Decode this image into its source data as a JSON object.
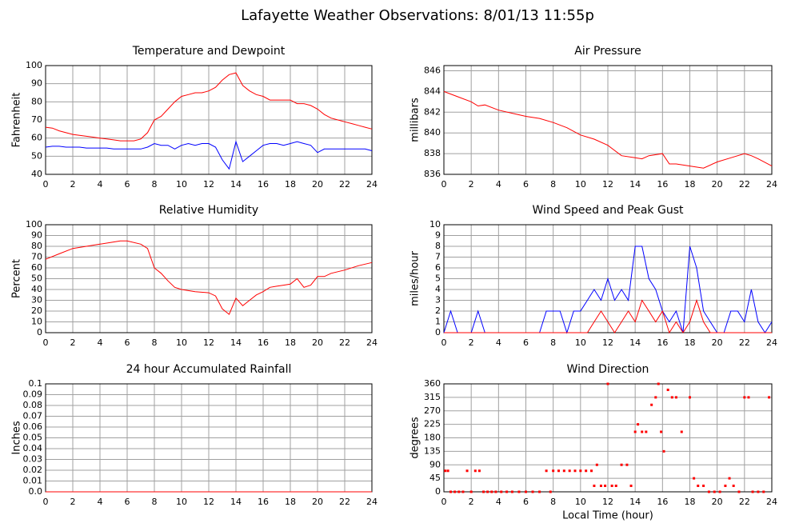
{
  "title": "Lafayette Weather Observations: 8/01/13 11:55p",
  "chart_data": [
    {
      "type": "line",
      "title": "Temperature and Dewpoint",
      "y_label": "Fahrenheit",
      "x": [
        0,
        0.5,
        1,
        1.5,
        2,
        2.5,
        3,
        3.5,
        4,
        4.5,
        5,
        5.5,
        6,
        6.5,
        7,
        7.5,
        8,
        8.5,
        9,
        9.5,
        10,
        10.5,
        11,
        11.5,
        12,
        12.5,
        13,
        13.5,
        14,
        14.5,
        15,
        15.5,
        16,
        16.5,
        17,
        17.5,
        18,
        18.5,
        19,
        19.5,
        20,
        20.5,
        21,
        21.5,
        22,
        22.5,
        23,
        23.5,
        24
      ],
      "series": [
        {
          "name": "Temperature",
          "color": "#ff0000",
          "values": [
            66,
            65.5,
            64,
            63,
            62,
            61.5,
            61,
            60.5,
            60,
            59.5,
            59,
            58.5,
            58.5,
            58.5,
            59.5,
            63,
            70,
            72,
            76,
            80,
            83,
            84,
            85,
            85,
            86,
            88,
            92,
            95,
            96,
            89,
            86,
            84,
            83,
            81,
            81,
            81,
            81,
            79,
            79,
            78,
            76,
            73,
            71,
            70,
            69,
            68,
            67,
            66,
            65
          ]
        },
        {
          "name": "Dewpoint",
          "color": "#0000ff",
          "values": [
            55,
            55.5,
            55.5,
            55,
            55,
            55,
            54.5,
            54.5,
            54.5,
            54.5,
            54,
            54,
            54,
            54,
            54,
            55,
            57,
            56,
            56,
            54,
            56,
            57,
            56,
            57,
            57,
            55,
            48,
            43,
            58,
            47,
            50,
            53,
            56,
            57,
            57,
            56,
            57,
            58,
            57,
            56,
            52,
            54,
            54,
            54,
            54,
            54,
            54,
            54,
            53
          ]
        }
      ],
      "xlim": [
        0,
        24
      ],
      "xticks": [
        0,
        2,
        4,
        6,
        8,
        10,
        12,
        14,
        16,
        18,
        20,
        22,
        24
      ],
      "ylim": [
        40,
        100
      ],
      "yticks": [
        40,
        50,
        60,
        70,
        80,
        90,
        100
      ],
      "grid": true
    },
    {
      "type": "line",
      "title": "Air Pressure",
      "y_label": "millibars",
      "x": [
        0,
        1,
        2,
        2.5,
        3,
        4,
        5,
        6,
        7,
        8,
        9,
        10,
        11,
        12,
        13,
        14,
        14.5,
        15,
        16,
        16.5,
        17,
        18,
        19,
        20,
        21,
        22,
        22.5,
        23,
        24
      ],
      "series": [
        {
          "name": "Pressure",
          "color": "#ff0000",
          "values": [
            844,
            843.5,
            843,
            842.6,
            842.7,
            842.2,
            841.9,
            841.6,
            841.4,
            841,
            840.5,
            839.8,
            839.4,
            838.8,
            837.8,
            837.6,
            837.5,
            837.8,
            838,
            837,
            837,
            836.8,
            836.6,
            837.2,
            837.6,
            838,
            837.8,
            837.5,
            836.8
          ]
        }
      ],
      "xlim": [
        0,
        24
      ],
      "xticks": [
        0,
        2,
        4,
        6,
        8,
        10,
        12,
        14,
        16,
        18,
        20,
        22,
        24
      ],
      "ylim": [
        836,
        846.5
      ],
      "yticks": [
        836,
        838,
        840,
        842,
        844,
        846
      ],
      "grid": true
    },
    {
      "type": "line",
      "title": "Relative Humidity",
      "y_label": "Percent",
      "x": [
        0,
        1,
        2,
        3,
        4,
        5,
        5.5,
        6,
        7,
        7.5,
        8,
        8.5,
        9,
        9.5,
        10,
        11,
        12,
        12.5,
        13,
        13.5,
        14,
        14.5,
        15,
        15.5,
        16,
        16.5,
        17,
        17.5,
        18,
        18.5,
        19,
        19.5,
        20,
        20.5,
        21,
        22,
        23,
        24
      ],
      "series": [
        {
          "name": "Relative Humidity",
          "color": "#ff0000",
          "values": [
            68,
            73,
            78,
            80,
            82,
            84,
            85,
            85,
            82,
            78,
            60,
            55,
            48,
            42,
            40,
            38,
            37,
            34,
            22,
            17,
            32,
            25,
            30,
            35,
            38,
            42,
            43,
            44,
            45,
            50,
            42,
            44,
            52,
            52,
            55,
            58,
            62,
            65
          ]
        }
      ],
      "xlim": [
        0,
        24
      ],
      "xticks": [
        0,
        2,
        4,
        6,
        8,
        10,
        12,
        14,
        16,
        18,
        20,
        22,
        24
      ],
      "ylim": [
        0,
        100
      ],
      "yticks": [
        0,
        10,
        20,
        30,
        40,
        50,
        60,
        70,
        80,
        90,
        100
      ],
      "grid": true
    },
    {
      "type": "line",
      "title": "Wind Speed and Peak Gust",
      "y_label": "miles/hour",
      "x": [
        0,
        0.5,
        1,
        1.5,
        2,
        2.5,
        3,
        3.5,
        4,
        4.5,
        5,
        5.5,
        6,
        6.5,
        7,
        7.5,
        8,
        8.5,
        9,
        9.5,
        10,
        10.5,
        11,
        11.5,
        12,
        12.5,
        13,
        13.5,
        14,
        14.5,
        15,
        15.5,
        16,
        16.5,
        17,
        17.5,
        18,
        18.5,
        19,
        19.5,
        20,
        20.5,
        21,
        21.5,
        22,
        22.5,
        23,
        23.5,
        24
      ],
      "series": [
        {
          "name": "Peak Gust",
          "color": "#0000ff",
          "values": [
            0,
            2,
            0,
            0,
            0,
            2,
            0,
            0,
            0,
            0,
            0,
            0,
            0,
            0,
            0,
            2,
            2,
            2,
            0,
            2,
            2,
            3,
            4,
            3,
            5,
            3,
            4,
            3,
            8,
            8,
            5,
            4,
            2,
            1,
            2,
            0,
            8,
            6,
            2,
            1,
            0,
            0,
            2,
            2,
            1,
            4,
            1,
            0,
            1
          ]
        },
        {
          "name": "Wind Speed",
          "color": "#ff0000",
          "values": [
            0,
            0,
            0,
            0,
            0,
            0,
            0,
            0,
            0,
            0,
            0,
            0,
            0,
            0,
            0,
            0,
            0,
            0,
            0,
            0,
            0,
            0,
            1,
            2,
            1,
            0,
            1,
            2,
            1,
            3,
            2,
            1,
            2,
            0,
            1,
            0,
            1,
            3,
            1,
            0,
            0,
            0,
            0,
            0,
            0,
            0,
            0,
            0,
            0
          ]
        }
      ],
      "xlim": [
        0,
        24
      ],
      "xticks": [
        0,
        2,
        4,
        6,
        8,
        10,
        12,
        14,
        16,
        18,
        20,
        22,
        24
      ],
      "ylim": [
        0,
        10
      ],
      "yticks": [
        0,
        1,
        2,
        3,
        4,
        5,
        6,
        7,
        8,
        9,
        10
      ],
      "grid": true
    },
    {
      "type": "line",
      "title": "24 hour Accumulated Rainfall",
      "y_label": "Inches",
      "x": [
        0,
        24
      ],
      "series": [
        {
          "name": "Rainfall",
          "color": "#ff0000",
          "values": [
            0,
            0
          ]
        }
      ],
      "xlim": [
        0,
        24
      ],
      "xticks": [
        0,
        2,
        4,
        6,
        8,
        10,
        12,
        14,
        16,
        18,
        20,
        22,
        24
      ],
      "ylim": [
        0,
        0.1
      ],
      "yticks": [
        {
          "value": 0,
          "label": "0.0"
        },
        0.01,
        0.02,
        0.03,
        0.04,
        0.05,
        0.06,
        0.07,
        0.08,
        0.09,
        {
          "value": 0.1,
          "label": "0.1"
        }
      ],
      "grid": true
    },
    {
      "type": "scatter",
      "title": "Wind Direction",
      "y_label": "degrees",
      "x_label": "Local Time (hour)",
      "color": "#ff0000",
      "x": [
        0.1,
        0.3,
        0.5,
        0.8,
        1.1,
        1.4,
        1.7,
        2.0,
        2.3,
        2.6,
        2.9,
        3.2,
        3.5,
        3.8,
        4.2,
        4.6,
        5,
        5.5,
        6,
        6.5,
        7,
        7.5,
        7.8,
        8,
        8.4,
        8.8,
        9.2,
        9.6,
        10,
        10.4,
        10.8,
        11,
        11.2,
        11.5,
        11.8,
        12,
        12.3,
        12.6,
        13,
        13.4,
        13.7,
        14,
        14.2,
        14.5,
        14.8,
        15.2,
        15.5,
        15.7,
        15.9,
        16.1,
        16.4,
        16.7,
        17,
        17.4,
        18,
        18.3,
        18.6,
        19,
        19.4,
        19.8,
        20.2,
        20.6,
        20.9,
        21.2,
        21.6,
        22,
        22.3,
        22.6,
        23,
        23.4,
        23.8
      ],
      "y": [
        70,
        70,
        0,
        0,
        0,
        0,
        70,
        0,
        70,
        70,
        0,
        0,
        0,
        0,
        0,
        0,
        0,
        0,
        0,
        0,
        0,
        70,
        0,
        70,
        70,
        70,
        70,
        70,
        70,
        70,
        70,
        20,
        90,
        20,
        20,
        360,
        20,
        20,
        90,
        90,
        20,
        200,
        225,
        200,
        200,
        290,
        315,
        360,
        200,
        135,
        340,
        315,
        315,
        200,
        315,
        45,
        20,
        20,
        0,
        0,
        0,
        20,
        45,
        20,
        0,
        315,
        315,
        0,
        0,
        0,
        315
      ],
      "xlim": [
        0,
        24
      ],
      "xticks": [
        0,
        2,
        4,
        6,
        8,
        10,
        12,
        14,
        16,
        18,
        20,
        22,
        24
      ],
      "ylim": [
        0,
        360
      ],
      "yticks": [
        0,
        45,
        90,
        135,
        180,
        225,
        270,
        315,
        360
      ],
      "grid": true
    }
  ]
}
